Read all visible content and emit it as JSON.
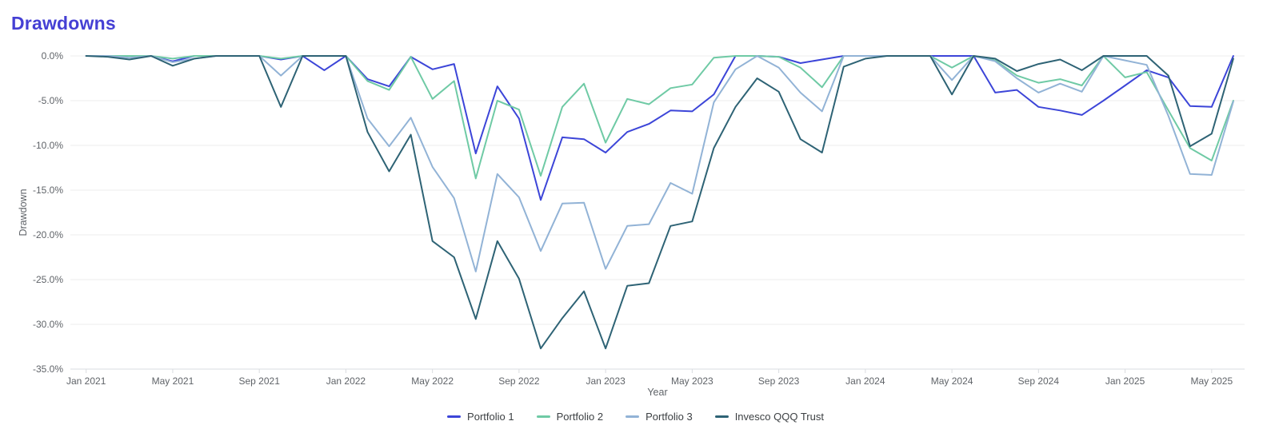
{
  "title": "Drawdowns",
  "chart_data": {
    "type": "line",
    "title": "Drawdowns",
    "xlabel": "Year",
    "ylabel": "Drawdown",
    "ylim": [
      -35,
      0
    ],
    "ytick_step": 5,
    "ytick_labels": [
      "0.0%",
      "-5.0%",
      "-10.0%",
      "-15.0%",
      "-20.0%",
      "-25.0%",
      "-30.0%",
      "-35.0%"
    ],
    "xtick_every": 4,
    "xtick_labels_shown": [
      "Jan 2021",
      "May 2021",
      "Sep 2021",
      "Jan 2022",
      "May 2022",
      "Sep 2022",
      "Jan 2023",
      "May 2023",
      "Sep 2023",
      "Jan 2024",
      "May 2024",
      "Sep 2024",
      "Jan 2025",
      "May 2025"
    ],
    "grid": true,
    "legend_position": "bottom-center",
    "x_months": [
      "Jan 2021",
      "Feb 2021",
      "Mar 2021",
      "Apr 2021",
      "May 2021",
      "Jun 2021",
      "Jul 2021",
      "Aug 2021",
      "Sep 2021",
      "Oct 2021",
      "Nov 2021",
      "Dec 2021",
      "Jan 2022",
      "Feb 2022",
      "Mar 2022",
      "Apr 2022",
      "May 2022",
      "Jun 2022",
      "Jul 2022",
      "Aug 2022",
      "Sep 2022",
      "Oct 2022",
      "Nov 2022",
      "Dec 2022",
      "Jan 2023",
      "Feb 2023",
      "Mar 2023",
      "Apr 2023",
      "May 2023",
      "Jun 2023",
      "Jul 2023",
      "Aug 2023",
      "Sep 2023",
      "Oct 2023",
      "Nov 2023",
      "Dec 2023",
      "Jan 2024",
      "Feb 2024",
      "Mar 2024",
      "Apr 2024",
      "May 2024",
      "Jun 2024",
      "Jul 2024",
      "Aug 2024",
      "Sep 2024",
      "Oct 2024",
      "Nov 2024",
      "Dec 2024",
      "Jan 2025",
      "Feb 2025",
      "Mar 2025",
      "Apr 2025",
      "May 2025",
      "Jun 2025"
    ],
    "y_units": "percent_drawdown",
    "series": [
      {
        "name": "Portfolio 1",
        "color": "#3c45d8",
        "values": [
          0,
          0,
          0,
          0,
          -0.6,
          0,
          0,
          0,
          0,
          -0.4,
          0,
          -1.6,
          0,
          -2.6,
          -3.4,
          -0.1,
          -1.5,
          -0.9,
          -10.9,
          -3.4,
          -7.0,
          -16.1,
          -9.1,
          -9.3,
          -10.8,
          -8.5,
          -7.6,
          -6.1,
          -6.2,
          -4.3,
          0,
          0,
          -0.1,
          -0.8,
          -0.4,
          0,
          0,
          0,
          0,
          0,
          0,
          0,
          -4.1,
          -3.8,
          -5.7,
          -6.1,
          -6.6,
          -5.0,
          -3.3,
          -1.6,
          -2.4,
          -5.6,
          -5.7,
          0
        ]
      },
      {
        "name": "Portfolio 2",
        "color": "#6fcaa5",
        "values": [
          0,
          0,
          0,
          0,
          -0.3,
          0,
          0,
          0,
          0,
          -0.3,
          0,
          0,
          0,
          -2.8,
          -3.8,
          -0.1,
          -4.8,
          -2.8,
          -13.7,
          -5.0,
          -6.0,
          -13.4,
          -5.7,
          -3.1,
          -9.7,
          -4.8,
          -5.4,
          -3.6,
          -3.2,
          -0.2,
          0,
          0,
          -0.1,
          -1.3,
          -3.5,
          0,
          0,
          0,
          0,
          0,
          -1.3,
          0,
          -0.5,
          -2.2,
          -3.0,
          -2.6,
          -3.3,
          0,
          -2.4,
          -1.8,
          -6.1,
          -10.3,
          -11.7,
          -5.0
        ]
      },
      {
        "name": "Portfolio 3",
        "color": "#92b3d6",
        "values": [
          0,
          0,
          -0.2,
          0,
          -0.7,
          -0.3,
          0,
          0,
          0,
          -2.2,
          0,
          0,
          0,
          -7.0,
          -10.1,
          -6.9,
          -12.4,
          -15.9,
          -24.1,
          -13.2,
          -15.8,
          -21.8,
          -16.5,
          -16.4,
          -23.8,
          -19.0,
          -18.8,
          -14.2,
          -15.4,
          -5.2,
          -1.5,
          0,
          -1.3,
          -4.1,
          -6.2,
          0,
          0,
          0,
          0,
          0,
          -2.7,
          0,
          -0.6,
          -2.5,
          -4.1,
          -3.1,
          -4.0,
          0,
          -0.5,
          -1.0,
          -6.7,
          -13.2,
          -13.3,
          -5.1
        ]
      },
      {
        "name": "Invesco QQQ Trust",
        "color": "#2e6375",
        "values": [
          0,
          -0.1,
          -0.4,
          0,
          -1.1,
          -0.3,
          0,
          0,
          0,
          -5.7,
          0,
          0,
          0,
          -8.5,
          -12.9,
          -8.8,
          -20.7,
          -22.5,
          -29.4,
          -20.7,
          -24.9,
          -32.7,
          -29.3,
          -26.3,
          -32.7,
          -25.7,
          -25.4,
          -19.0,
          -18.5,
          -10.3,
          -5.7,
          -2.5,
          -4.0,
          -9.3,
          -10.8,
          -1.2,
          -0.3,
          0,
          0,
          0,
          -4.3,
          0,
          -0.3,
          -1.7,
          -0.9,
          -0.4,
          -1.6,
          0,
          0,
          0,
          -2.2,
          -10.1,
          -8.7,
          -0.3
        ]
      }
    ],
    "colors": {
      "grid": "#ececec",
      "axis": "#dadce0",
      "tick_text": "#5f6368",
      "title": "#4540d4",
      "legend_text": "#3c4043",
      "background": "#ffffff"
    }
  }
}
